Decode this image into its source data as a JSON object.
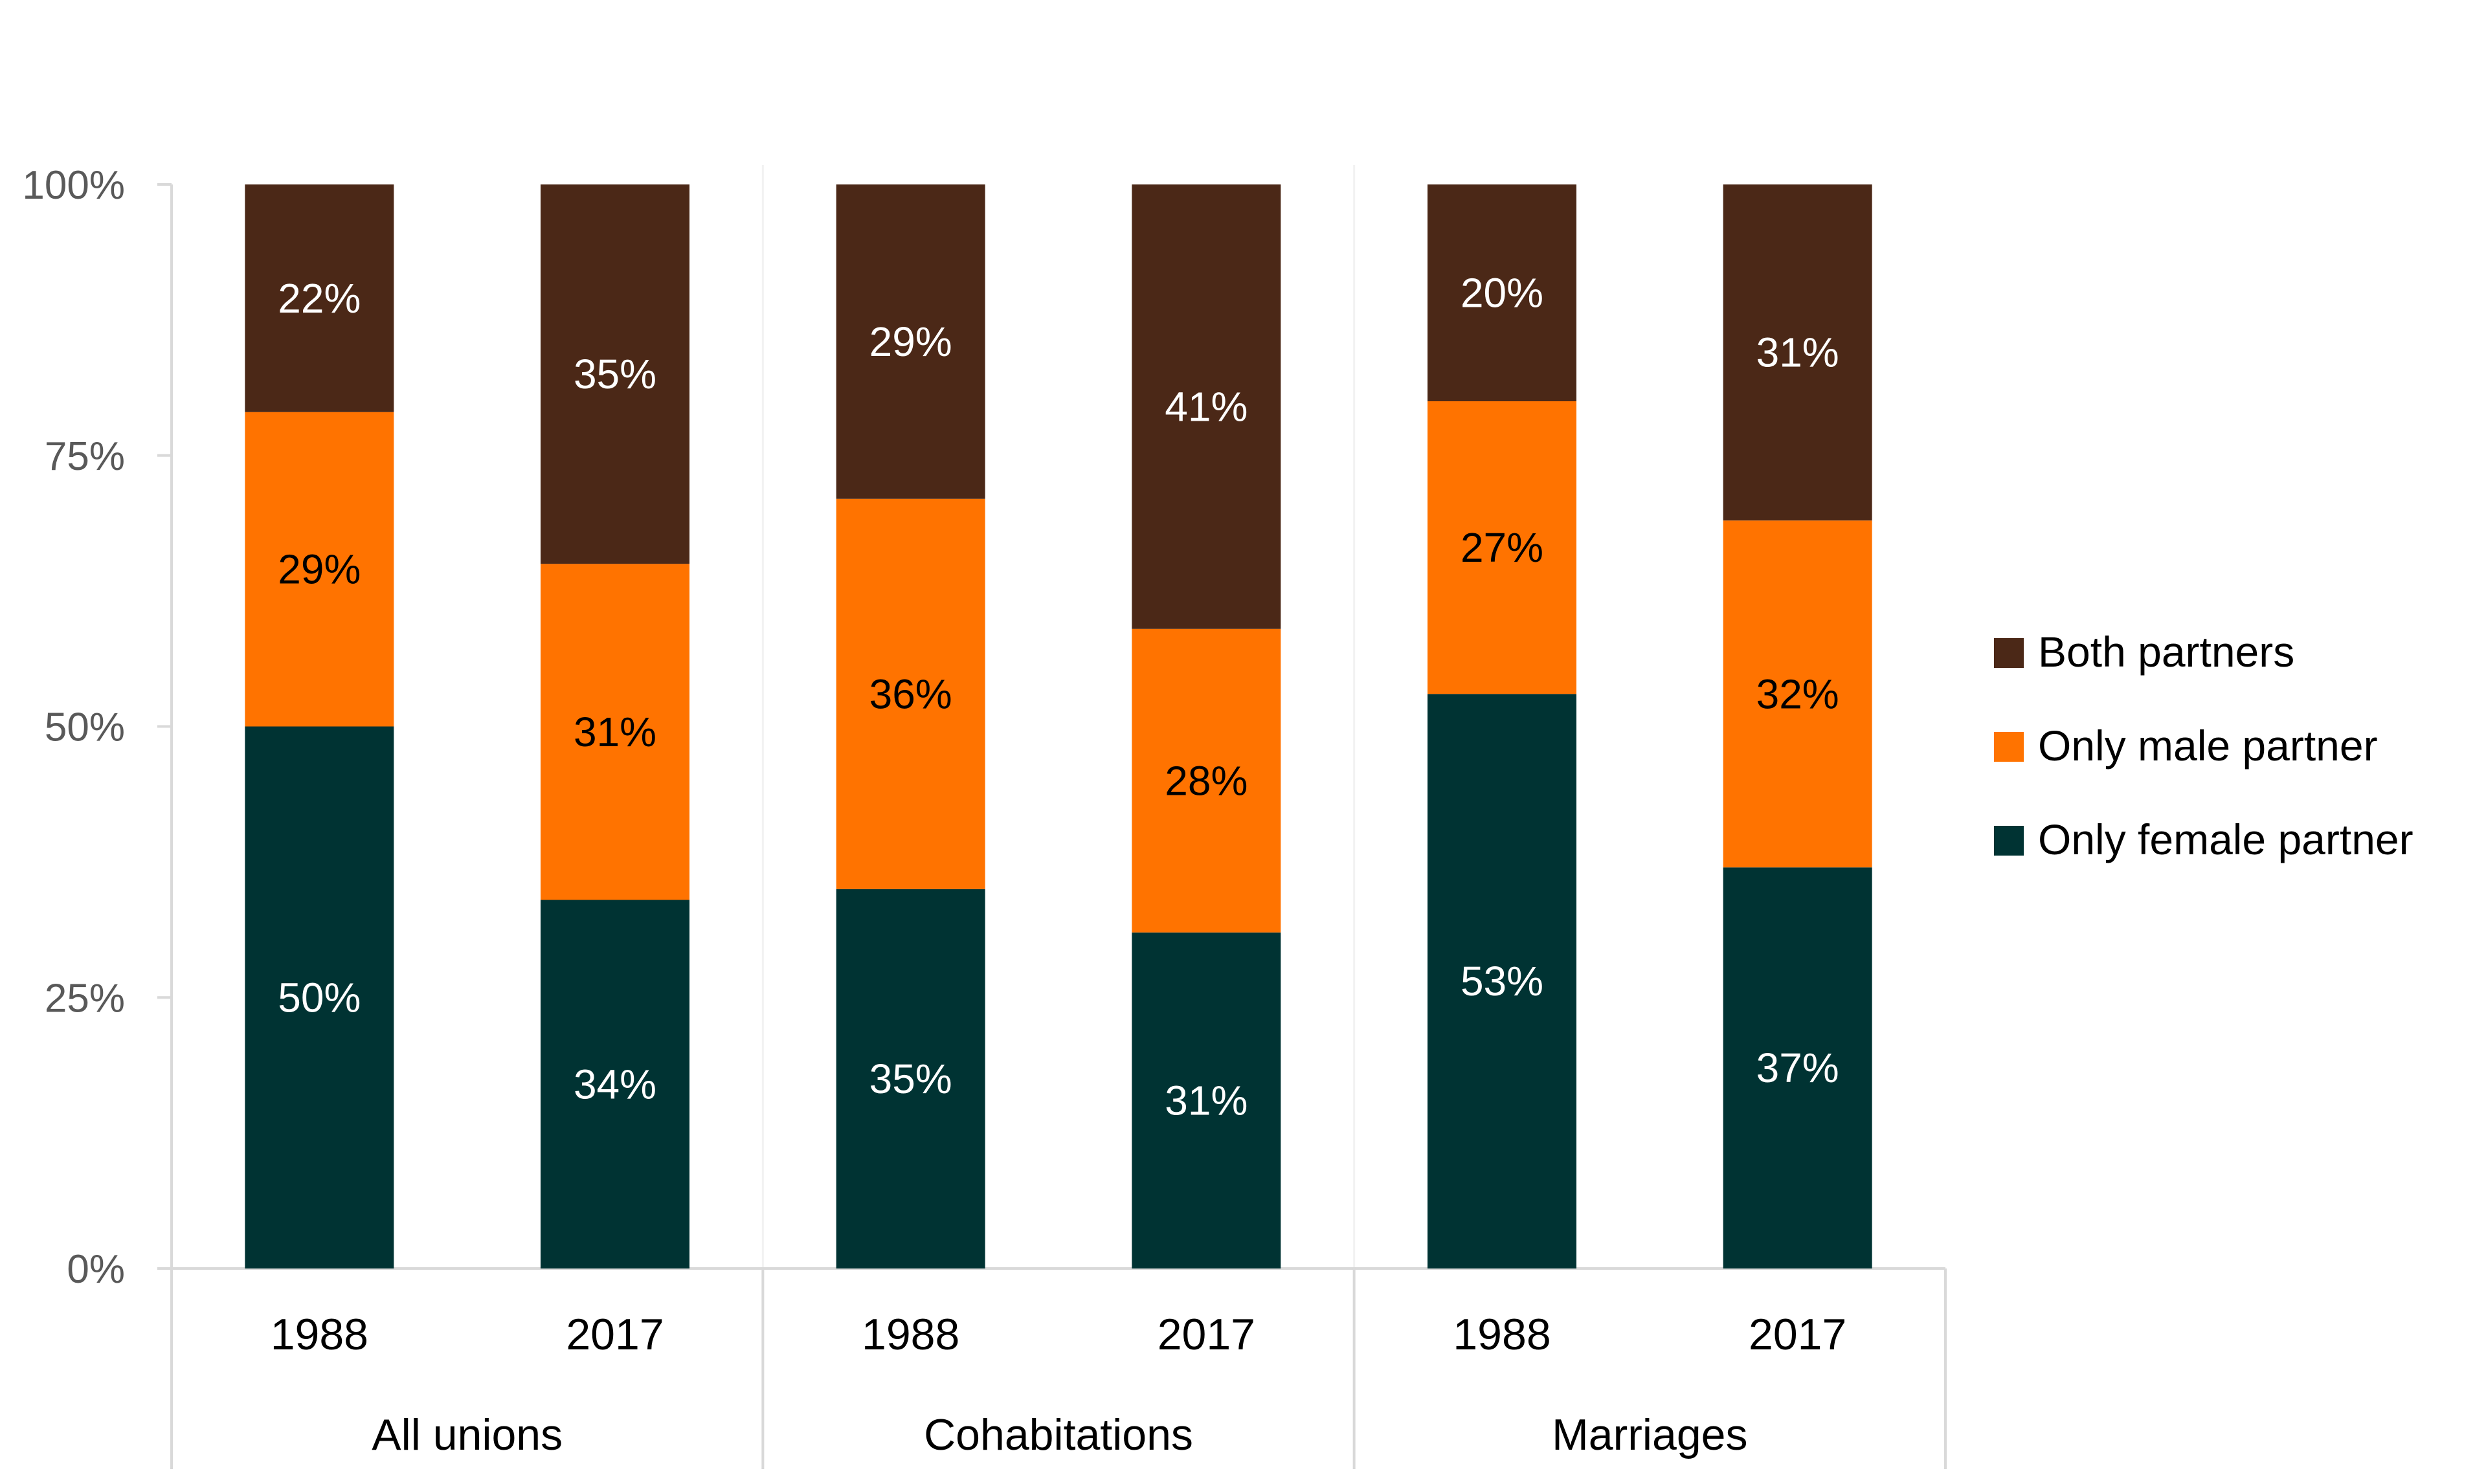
{
  "chart_data": {
    "type": "bar",
    "stacked": true,
    "title": "",
    "xlabel": "",
    "ylabel": "",
    "ylim": [
      0,
      100
    ],
    "y_ticks": [
      "0%",
      "25%",
      "50%",
      "75%",
      "100%"
    ],
    "y_tick_values": [
      0,
      25,
      50,
      75,
      100
    ],
    "groups": [
      {
        "label": "All unions",
        "categories": [
          "1988",
          "2017"
        ]
      },
      {
        "label": "Cohabitations",
        "categories": [
          "1988",
          "2017"
        ]
      },
      {
        "label": "Marriages",
        "categories": [
          "1988",
          "2017"
        ]
      }
    ],
    "series": [
      {
        "name": "Only female partner",
        "color": "#003333",
        "label_color": "#ffffff",
        "values": [
          50,
          34,
          35,
          31,
          53,
          37
        ],
        "labels": [
          "50%",
          "34%",
          "35%",
          "31%",
          "53%",
          "37%"
        ]
      },
      {
        "name": "Only male partner",
        "color": "#ff7300",
        "label_color": "#000000",
        "values": [
          29,
          31,
          36,
          28,
          27,
          32
        ],
        "labels": [
          "29%",
          "31%",
          "36%",
          "28%",
          "27%",
          "32%"
        ]
      },
      {
        "name": "Both partners",
        "color": "#4b2817",
        "label_color": "#ffffff",
        "values": [
          22,
          35,
          29,
          41,
          20,
          31
        ],
        "labels": [
          "22%",
          "35%",
          "29%",
          "41%",
          "20%",
          "31%"
        ]
      }
    ],
    "legend": {
      "position": "right",
      "entries": [
        "Both partners",
        "Only male partner",
        "Only female partner"
      ]
    }
  }
}
